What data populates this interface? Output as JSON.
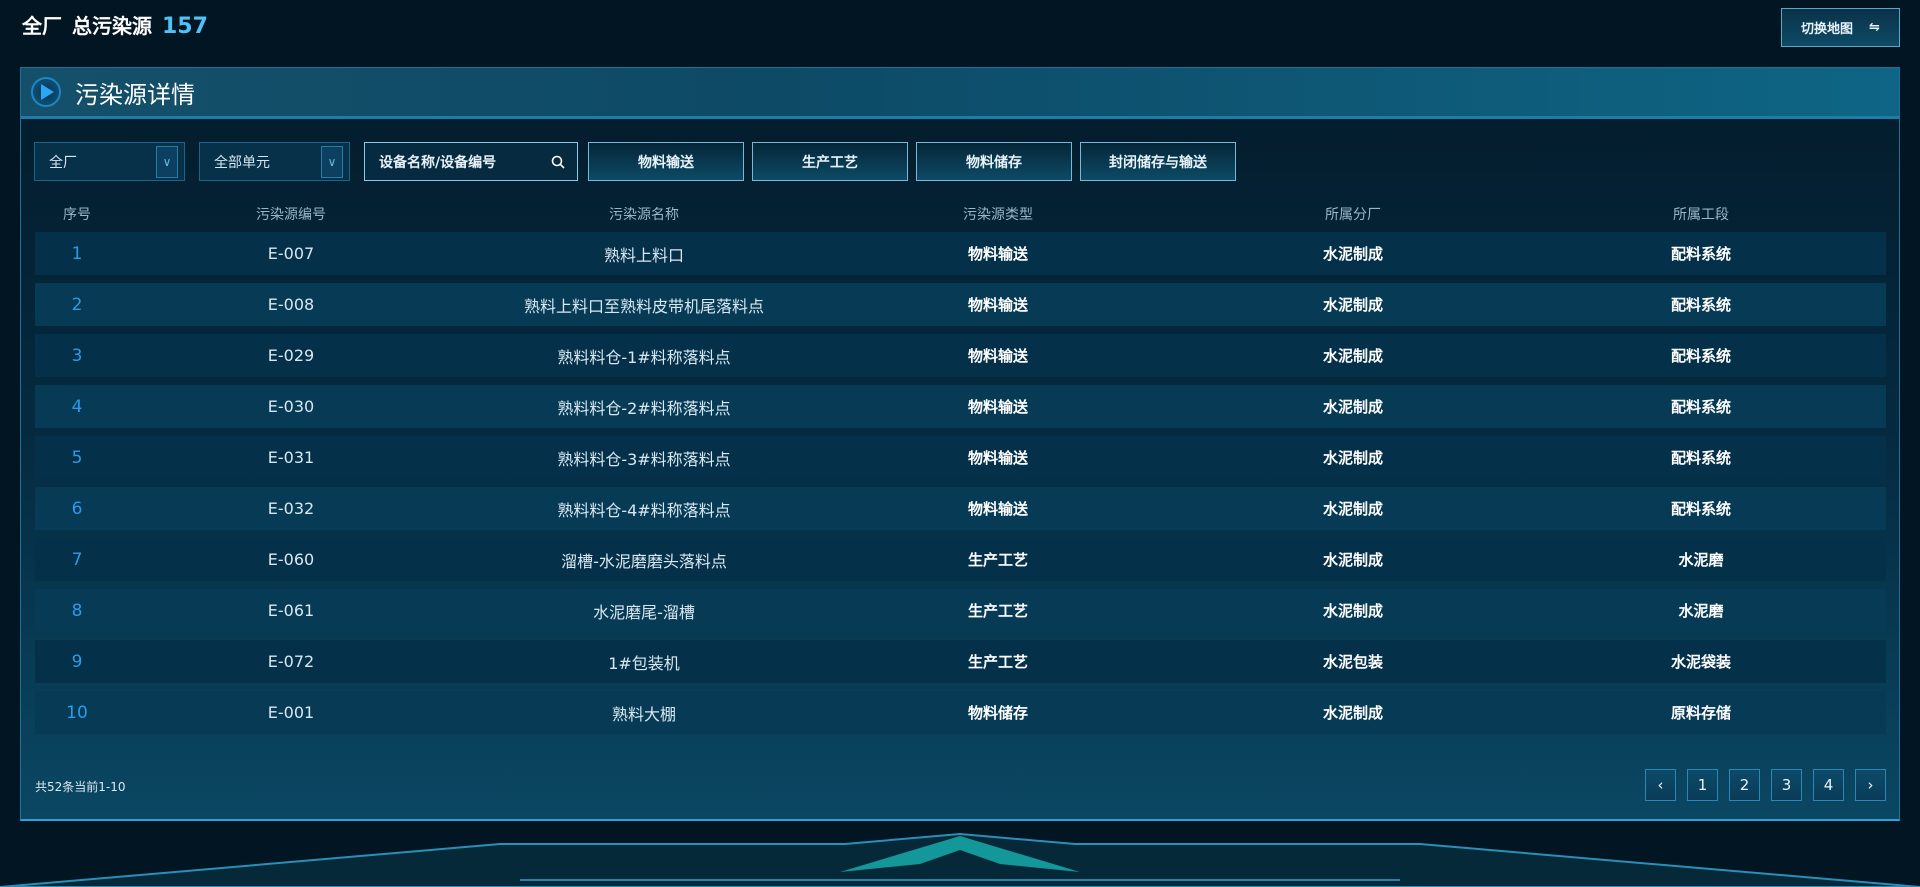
{
  "header": {
    "scope": "全厂",
    "label": "总污染源",
    "count": "157",
    "switch_label": "切换地图",
    "switch_icon": "swap-icon"
  },
  "panel": {
    "title": "污染源详情"
  },
  "filters": {
    "factory_select": "全厂",
    "unit_select": "全部单元",
    "search_placeholder": "设备名称/设备编号",
    "type_buttons": [
      "物料输送",
      "生产工艺",
      "物料储存",
      "封闭储存与输送"
    ]
  },
  "table": {
    "columns": [
      "序号",
      "污染源编号",
      "污染源名称",
      "污染源类型",
      "所属分厂",
      "所属工段"
    ],
    "rows": [
      [
        "1",
        "E-007",
        "熟料上料口",
        "物料输送",
        "水泥制成",
        "配料系统"
      ],
      [
        "2",
        "E-008",
        "熟料上料口至熟料皮带机尾落料点",
        "物料输送",
        "水泥制成",
        "配料系统"
      ],
      [
        "3",
        "E-029",
        "熟料料仓-1#料称落料点",
        "物料输送",
        "水泥制成",
        "配料系统"
      ],
      [
        "4",
        "E-030",
        "熟料料仓-2#料称落料点",
        "物料输送",
        "水泥制成",
        "配料系统"
      ],
      [
        "5",
        "E-031",
        "熟料料仓-3#料称落料点",
        "物料输送",
        "水泥制成",
        "配料系统"
      ],
      [
        "6",
        "E-032",
        "熟料料仓-4#料称落料点",
        "物料输送",
        "水泥制成",
        "配料系统"
      ],
      [
        "7",
        "E-060",
        "溜槽-水泥磨磨头落料点",
        "生产工艺",
        "水泥制成",
        "水泥磨"
      ],
      [
        "8",
        "E-061",
        "水泥磨尾-溜槽",
        "生产工艺",
        "水泥制成",
        "水泥磨"
      ],
      [
        "9",
        "E-072",
        "1#包装机",
        "生产工艺",
        "水泥包装",
        "水泥袋装"
      ],
      [
        "10",
        "E-001",
        "熟料大棚",
        "物料储存",
        "水泥制成",
        "原料存储"
      ]
    ]
  },
  "pagination": {
    "summary": "共52条当前1-10",
    "prev": "‹",
    "pages": [
      "1",
      "2",
      "3",
      "4"
    ],
    "next": "›"
  },
  "colors": {
    "accent": "#2c9be8",
    "count": "#4fc3f7",
    "background": "#021522"
  }
}
